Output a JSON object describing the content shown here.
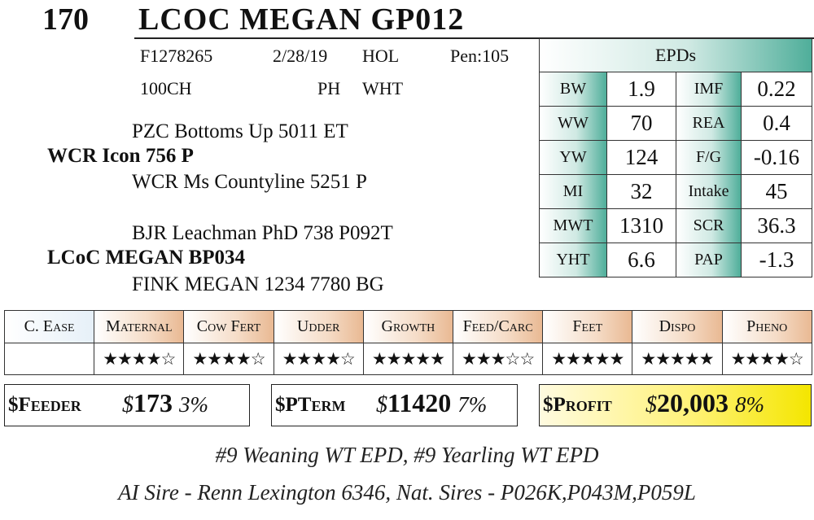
{
  "header": {
    "lot": "170",
    "title": "LCOC MEGAN GP012"
  },
  "info": {
    "row1": [
      "F1278265",
      "2/28/19",
      "HOL",
      "Pen:105"
    ],
    "row2": [
      "100CH",
      "PH",
      "WHT"
    ]
  },
  "pedigree": [
    {
      "text": "PZC Bottoms Up 5011 ET",
      "bold": false
    },
    {
      "text": "WCR Icon 756 P",
      "bold": true
    },
    {
      "text": "WCR Ms Countyline 5251 P",
      "bold": false
    },
    {
      "text": "BJR Leachman PhD 738 P092T",
      "bold": false
    },
    {
      "text": "LCoC MEGAN BP034",
      "bold": true
    },
    {
      "text": "FINK MEGAN 1234 7780 BG",
      "bold": false
    }
  ],
  "epds": {
    "title": "EPDs",
    "rows": [
      [
        "BW",
        "1.9",
        "IMF",
        "0.22"
      ],
      [
        "WW",
        "70",
        "REA",
        "0.4"
      ],
      [
        "YW",
        "124",
        "F/G",
        "-0.16"
      ],
      [
        "MI",
        "32",
        "Intake",
        "45"
      ],
      [
        "MWT",
        "1310",
        "SCR",
        "36.3"
      ],
      [
        "YHT",
        "6.6",
        "PAP",
        "-1.3"
      ]
    ]
  },
  "ratings": {
    "headers": [
      "C. Ease",
      "Maternal",
      "Cow Fert",
      "Udder",
      "Growth",
      "Feed/Carc",
      "Feet",
      "Dispo",
      "Pheno"
    ],
    "stars": [
      null,
      "★★★★☆",
      "★★★★☆",
      "★★★★☆",
      "★★★★★",
      "★★★☆☆",
      "★★★★★",
      "★★★★★",
      "★★★★☆"
    ]
  },
  "indexes": [
    {
      "label": "$Feeder",
      "currency": "$",
      "amount": "173",
      "percent": "3%"
    },
    {
      "label": "$PTerm",
      "currency": "$",
      "amount": "11420",
      "percent": "7%"
    },
    {
      "label": "$Profit",
      "currency": "$",
      "amount": "20,003",
      "percent": "8%"
    }
  ],
  "notes": [
    "#9 Weaning WT EPD, #9 Yearling WT EPD",
    "AI Sire - Renn Lexington 6346, Nat. Sires - P026K,P043M,P059L"
  ]
}
